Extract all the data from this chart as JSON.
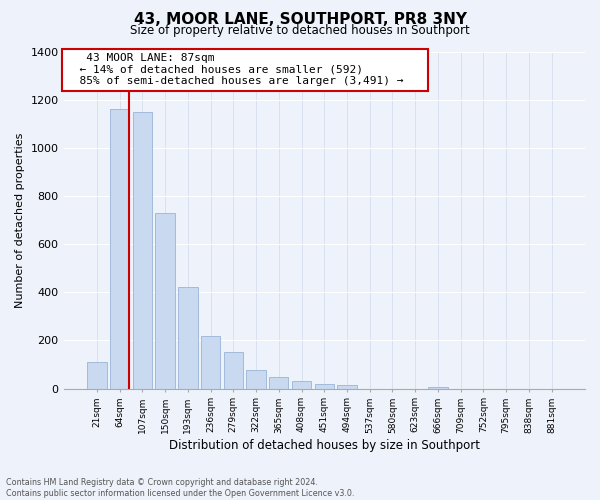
{
  "title": "43, MOOR LANE, SOUTHPORT, PR8 3NY",
  "subtitle": "Size of property relative to detached houses in Southport",
  "xlabel": "Distribution of detached houses by size in Southport",
  "ylabel": "Number of detached properties",
  "bar_labels": [
    "21sqm",
    "64sqm",
    "107sqm",
    "150sqm",
    "193sqm",
    "236sqm",
    "279sqm",
    "322sqm",
    "365sqm",
    "408sqm",
    "451sqm",
    "494sqm",
    "537sqm",
    "580sqm",
    "623sqm",
    "666sqm",
    "709sqm",
    "752sqm",
    "795sqm",
    "838sqm",
    "881sqm"
  ],
  "bar_values": [
    110,
    1160,
    1150,
    730,
    420,
    220,
    150,
    75,
    50,
    30,
    20,
    15,
    0,
    0,
    0,
    8,
    0,
    0,
    0,
    0,
    0
  ],
  "bar_color": "#c9d9f0",
  "bar_edge_color": "#9ab4d8",
  "vline_color": "#cc0000",
  "annotation_title": "43 MOOR LANE: 87sqm",
  "annotation_line1": "← 14% of detached houses are smaller (592)",
  "annotation_line2": "85% of semi-detached houses are larger (3,491) →",
  "annotation_box_color": "#ffffff",
  "annotation_box_edge": "#cc0000",
  "ylim": [
    0,
    1400
  ],
  "yticks": [
    0,
    200,
    400,
    600,
    800,
    1000,
    1200,
    1400
  ],
  "footer1": "Contains HM Land Registry data © Crown copyright and database right 2024.",
  "footer2": "Contains public sector information licensed under the Open Government Licence v3.0.",
  "bg_color": "#eef2fa"
}
